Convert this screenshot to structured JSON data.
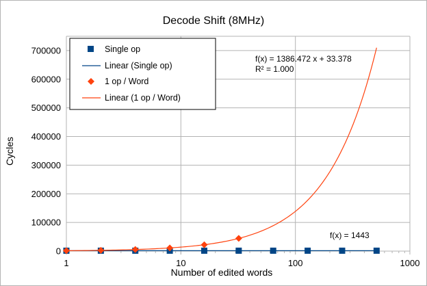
{
  "chart_data": {
    "type": "scatter",
    "title": "Decode Shift (8MHz)",
    "xlabel": "Number of edited words",
    "ylabel": "Cycles",
    "x_scale": "log",
    "xlim": [
      1,
      1000
    ],
    "ylim": [
      0,
      750000
    ],
    "x_ticks": [
      "1",
      "10",
      "100",
      "1000"
    ],
    "y_ticks": [
      "0",
      "100000",
      "200000",
      "300000",
      "400000",
      "500000",
      "600000",
      "700000"
    ],
    "grid": true,
    "legend_position": "top-left",
    "legend": [
      "Single op",
      "Linear (Single op)",
      "1 op / Word",
      "Linear (1 op / Word)"
    ],
    "series": [
      {
        "name": "Single op",
        "marker": "square",
        "color": "#004586",
        "x": [
          1,
          2,
          4,
          8,
          16,
          32,
          64,
          128,
          256,
          512
        ],
        "y": [
          1443,
          1443,
          1443,
          1443,
          1443,
          1443,
          1443,
          1443,
          1443,
          1443
        ]
      },
      {
        "name": "1 op / Word",
        "marker": "diamond",
        "color": "#ff420e",
        "x": [
          1,
          2,
          4,
          8,
          16,
          32
        ],
        "y": [
          1420,
          2806,
          5579,
          11125,
          22217,
          44401
        ]
      }
    ],
    "trendlines": [
      {
        "name": "Linear (Single op)",
        "color": "#004586",
        "slope": 0,
        "intercept": 1443,
        "equation": "f(x) = 1443"
      },
      {
        "name": "Linear (1 op / Word)",
        "color": "#ff420e",
        "slope": 1386.472,
        "intercept": 33.378,
        "equation": "f(x) = 1386.472 x + 33.378",
        "r_squared": "R² = 1.000"
      }
    ]
  }
}
